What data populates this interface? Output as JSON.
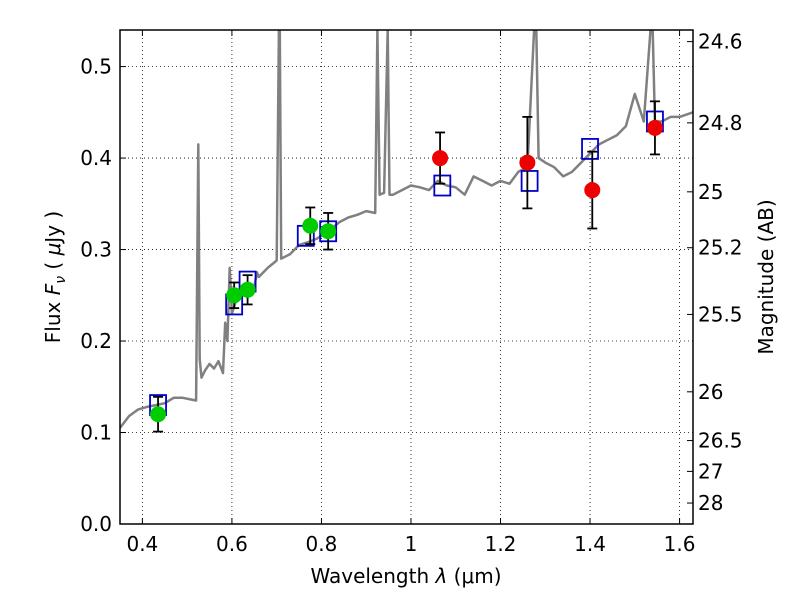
{
  "chart_data": {
    "type": "scatter",
    "title": "",
    "xlabel": "Wavelength  λ (μm)",
    "ylabel": "Flux  F_ν  ( μJy )",
    "ylabel_parts": {
      "prefix": "Flux  ",
      "symbol": "F",
      "subscript": "ν",
      "unit_open": "  ( ",
      "unit_mu": "μ",
      "unit": "Jy )"
    },
    "xlabel_parts": {
      "prefix": "Wavelength  ",
      "symbol": "λ",
      "unit": " (μm)"
    },
    "y2label": "Magnitude (AB)",
    "xlim": [
      0.35,
      1.63
    ],
    "ylim": [
      0.0,
      0.54
    ],
    "grid": true,
    "x_ticks": [
      {
        "value": 0.4,
        "label": "0.4"
      },
      {
        "value": 0.6,
        "label": "0.6"
      },
      {
        "value": 0.8,
        "label": "0.8"
      },
      {
        "value": 1.0,
        "label": "1"
      },
      {
        "value": 1.2,
        "label": "1.2"
      },
      {
        "value": 1.4,
        "label": "1.4"
      },
      {
        "value": 1.6,
        "label": "1.6"
      }
    ],
    "y_ticks": [
      {
        "value": 0.0,
        "label": "0.0"
      },
      {
        "value": 0.1,
        "label": "0.1"
      },
      {
        "value": 0.2,
        "label": "0.2"
      },
      {
        "value": 0.3,
        "label": "0.3"
      },
      {
        "value": 0.4,
        "label": "0.4"
      },
      {
        "value": 0.5,
        "label": "0.5"
      }
    ],
    "y2_ticks": [
      {
        "flux": 0.5273,
        "label": "24.6"
      },
      {
        "flux": 0.4385,
        "label": "24.8"
      },
      {
        "flux": 0.3631,
        "label": "25"
      },
      {
        "flux": 0.302,
        "label": "25.2"
      },
      {
        "flux": 0.2291,
        "label": "25.5"
      },
      {
        "flux": 0.1445,
        "label": "26"
      },
      {
        "flux": 0.0912,
        "label": "26.5"
      },
      {
        "flux": 0.0575,
        "label": "27"
      },
      {
        "flux": 0.0229,
        "label": "28"
      }
    ],
    "series": [
      {
        "color": "#808080",
        "style": "line",
        "x": [
          0.35,
          0.37,
          0.39,
          0.41,
          0.43,
          0.45,
          0.47,
          0.49,
          0.51,
          0.52,
          0.525,
          0.528,
          0.532,
          0.54,
          0.55,
          0.56,
          0.57,
          0.58,
          0.585,
          0.59,
          0.595,
          0.6,
          0.61,
          0.62,
          0.64,
          0.65,
          0.656,
          0.66,
          0.68,
          0.7,
          0.705,
          0.707,
          0.71,
          0.73,
          0.75,
          0.77,
          0.79,
          0.8,
          0.82,
          0.84,
          0.86,
          0.88,
          0.9,
          0.92,
          0.925,
          0.93,
          0.94,
          0.948,
          0.952,
          0.96,
          0.98,
          1.0,
          1.02,
          1.04,
          1.06,
          1.08,
          1.1,
          1.12,
          1.14,
          1.16,
          1.18,
          1.2,
          1.22,
          1.24,
          1.26,
          1.275,
          1.28,
          1.285,
          1.3,
          1.32,
          1.34,
          1.36,
          1.38,
          1.4,
          1.42,
          1.44,
          1.46,
          1.48,
          1.5,
          1.52,
          1.535,
          1.54,
          1.545,
          1.56,
          1.58,
          1.6,
          1.63
        ],
        "y": [
          0.105,
          0.118,
          0.125,
          0.128,
          0.13,
          0.132,
          0.138,
          0.138,
          0.136,
          0.135,
          0.415,
          0.18,
          0.16,
          0.168,
          0.175,
          0.17,
          0.178,
          0.165,
          0.22,
          0.2,
          0.28,
          0.23,
          0.245,
          0.25,
          0.255,
          0.26,
          0.275,
          0.27,
          0.28,
          0.288,
          0.54,
          0.54,
          0.29,
          0.295,
          0.305,
          0.308,
          0.312,
          0.315,
          0.322,
          0.33,
          0.335,
          0.338,
          0.342,
          0.34,
          0.54,
          0.36,
          0.362,
          0.54,
          0.36,
          0.36,
          0.365,
          0.37,
          0.368,
          0.365,
          0.375,
          0.37,
          0.368,
          0.36,
          0.38,
          0.375,
          0.37,
          0.375,
          0.372,
          0.385,
          0.39,
          0.54,
          0.54,
          0.4,
          0.395,
          0.39,
          0.38,
          0.385,
          0.395,
          0.405,
          0.415,
          0.42,
          0.425,
          0.435,
          0.47,
          0.44,
          0.54,
          0.54,
          0.44,
          0.44,
          0.445,
          0.445,
          0.45
        ]
      },
      {
        "color": "#0000cc",
        "style": "open-square",
        "x": [
          0.435,
          0.605,
          0.635,
          0.765,
          0.815,
          1.07,
          1.265,
          1.4,
          1.545
        ],
        "y": [
          0.13,
          0.24,
          0.265,
          0.315,
          0.32,
          0.37,
          0.375,
          0.41,
          0.44
        ]
      },
      {
        "color": "#00cc00",
        "style": "filled-circle",
        "x": [
          0.435,
          0.605,
          0.635,
          0.775,
          0.815
        ],
        "y": [
          0.12,
          0.25,
          0.256,
          0.326,
          0.32
        ],
        "yerr": [
          0.019,
          0.014,
          0.016,
          0.02,
          0.02
        ]
      },
      {
        "color": "#ee0000",
        "style": "filled-circle",
        "x": [
          1.065,
          1.26,
          1.405,
          1.545
        ],
        "y": [
          0.4,
          0.395,
          0.365,
          0.433
        ],
        "yerr": [
          0.028,
          0.05,
          0.042,
          0.029
        ]
      }
    ]
  }
}
